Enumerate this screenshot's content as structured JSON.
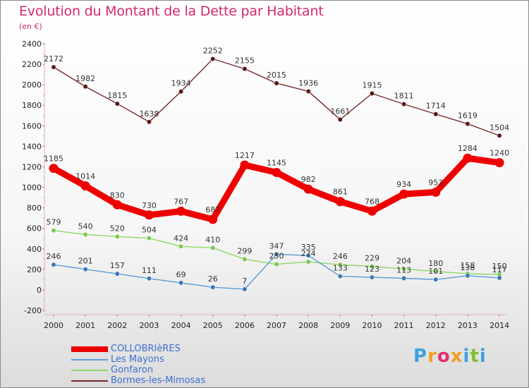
{
  "title": "Evolution du Montant de la Dette par Habitant",
  "subtitle": "(en €)",
  "logo": {
    "text": "Proxiti",
    "letters": [
      {
        "ch": "P",
        "color": "#3fa0e0"
      },
      {
        "ch": "r",
        "color": "#f0a020"
      },
      {
        "ch": "o",
        "color": "#e03070"
      },
      {
        "ch": "x",
        "color": "#f0a020"
      },
      {
        "ch": "i",
        "color": "#3fa0e0"
      },
      {
        "ch": "t",
        "color": "#80c030"
      },
      {
        "ch": "i",
        "color": "#3fa0e0"
      }
    ]
  },
  "chart_data": {
    "type": "line",
    "title": "Evolution du Montant de la Dette par Habitant",
    "subtitle": "(en €)",
    "x": [
      "2000",
      "2001",
      "2002",
      "2003",
      "2004",
      "2005",
      "2006",
      "2007",
      "2008",
      "2009",
      "2010",
      "2011",
      "2012",
      "2013",
      "2014"
    ],
    "ylim": [
      -200,
      2400
    ],
    "yticks": [
      "-200",
      "0",
      "200",
      "400",
      "600",
      "800",
      "1000",
      "1200",
      "1400",
      "1600",
      "1800",
      "2000",
      "2200",
      "2400"
    ],
    "grid": false,
    "legend_position": "bottom-left",
    "series": [
      {
        "name": "COLLOBRIèRES",
        "color": "#ee0000",
        "marker_color": "#ee0000",
        "width": 9,
        "values": [
          1185,
          1014,
          830,
          730,
          767,
          687,
          1217,
          1145,
          982,
          861,
          768,
          934,
          953,
          1284,
          1240
        ],
        "labels": [
          "1185",
          "1014",
          "830",
          "730",
          "767",
          "687",
          "1217",
          "1145",
          "982",
          "861",
          "768",
          "934",
          "953",
          "1284",
          "1240"
        ]
      },
      {
        "name": "Les Mayons",
        "color": "#5b9bd5",
        "marker_color": "#3a78b8",
        "width": 1.4,
        "values": [
          246,
          201,
          157,
          111,
          69,
          26,
          7,
          347,
          335,
          133,
          123,
          113,
          101,
          138,
          117
        ],
        "labels": [
          "246",
          "201",
          "157",
          "111",
          "69",
          "26",
          "7",
          "347",
          "335",
          "133",
          "123",
          "113",
          "101",
          "138",
          "117"
        ]
      },
      {
        "name": "Gonfaron",
        "color": "#8fd866",
        "marker_color": "#7cc850",
        "width": 1.4,
        "values": [
          579,
          540,
          520,
          504,
          424,
          410,
          299,
          250,
          274,
          246,
          229,
          204,
          180,
          158,
          150
        ],
        "labels": [
          "579",
          "540",
          "520",
          "504",
          "424",
          "410",
          "299",
          "250",
          "274",
          "246",
          "229",
          "204",
          "180",
          "158",
          "150"
        ]
      },
      {
        "name": "Bormes-les-Mimosas",
        "color": "#7a2a2a",
        "marker_color": "#5a1515",
        "width": 1.4,
        "values": [
          2172,
          1982,
          1815,
          1638,
          1934,
          2252,
          2155,
          2015,
          1936,
          1661,
          1915,
          1811,
          1714,
          1619,
          1504
        ],
        "labels": [
          "2172",
          "1982",
          "1815",
          "1638",
          "1934",
          "2252",
          "2155",
          "2015",
          "1936",
          "1661",
          "1915",
          "1811",
          "1714",
          "1619",
          "1504"
        ]
      }
    ]
  }
}
